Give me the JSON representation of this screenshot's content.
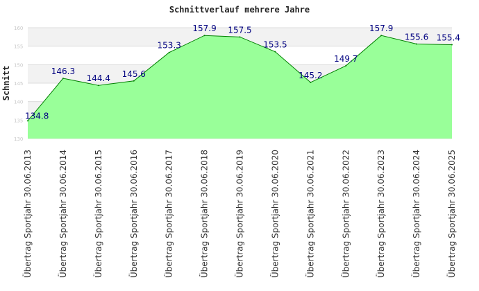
{
  "chart_data": {
    "type": "area",
    "title": "Schnittverlauf mehrere Jahre",
    "xlabel": "",
    "ylabel": "Schnitt",
    "ylim": [
      130,
      160
    ],
    "yticks": [
      "130",
      "135",
      "140",
      "145",
      "150",
      "155",
      "160"
    ],
    "grid": true,
    "categories": [
      "Übertrag Sportjahr 30.06.2013",
      "Übertrag Sportjahr 30.06.2014",
      "Übertrag Sportjahr 30.06.2015",
      "Übertrag Sportjahr 30.06.2016",
      "Übertrag Sportjahr 30.06.2017",
      "Übertrag Sportjahr 30.06.2018",
      "Übertrag Sportjahr 30.06.2019",
      "Übertrag Sportjahr 30.06.2020",
      "Übertrag Sportjahr 30.06.2021",
      "Übertrag Sportjahr 30.06.2022",
      "Übertrag Sportjahr 30.06.2023",
      "Übertrag Sportjahr 30.06.2024",
      "Übertrag Sportjahr 30.06.2025"
    ],
    "values": [
      134.8,
      146.3,
      144.4,
      145.6,
      153.3,
      157.9,
      157.5,
      153.5,
      145.2,
      149.7,
      157.9,
      155.6,
      155.4
    ],
    "labels": [
      "134.8",
      "146.3",
      "144.4",
      "145.6",
      "153.3",
      "157.9",
      "157.5",
      "153.5",
      "145.2",
      "149.7",
      "157.9",
      "155.6",
      "155.4"
    ],
    "colors": {
      "fill": "#99ff99",
      "line": "#008000",
      "band": "#f2f2f2",
      "grid": "#dcdcdc",
      "data_label": "#000080"
    }
  }
}
